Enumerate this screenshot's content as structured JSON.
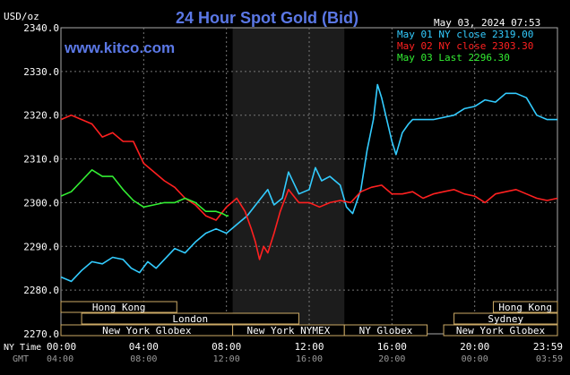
{
  "chart_data": {
    "type": "line",
    "title": "24 Hour Spot Gold (Bid)",
    "brand": "www.kitco.com",
    "timestamp": "May 03, 2024 07:53",
    "ylabel": "USD/oz",
    "ylim": [
      2270,
      2340
    ],
    "y_ticks": [
      "2340.0",
      "2330.0",
      "2320.0",
      "2310.0",
      "2300.0",
      "2290.0",
      "2280.0",
      "2270.0"
    ],
    "y_tick_values": [
      2340,
      2330,
      2320,
      2310,
      2300,
      2290,
      2280,
      2270
    ],
    "xlim": [
      0,
      24
    ],
    "x_axis_label_ny": "NY Time",
    "x_axis_label_gmt": "GMT",
    "x_ticks_ny": [
      "00:00",
      "04:00",
      "08:00",
      "12:00",
      "16:00",
      "20:00",
      "23:59"
    ],
    "x_ticks_gmt": [
      "04:00",
      "08:00",
      "12:00",
      "16:00",
      "20:00",
      "00:00",
      "03:59"
    ],
    "x_tick_hours": [
      0,
      4,
      8,
      12,
      16,
      20,
      24
    ],
    "shaded_hours": [
      8.3,
      13.7
    ],
    "grid": true,
    "legend_position": "top-right",
    "legend": [
      {
        "text": "May 01 NY close 2319.00",
        "color": "#33ccff"
      },
      {
        "text": "May 02 NY close 2303.30",
        "color": "#ff2020"
      },
      {
        "text": "May 03 Last 2296.30",
        "color": "#33ee33"
      }
    ],
    "sessions": [
      {
        "label": "Hong Kong",
        "start": 0,
        "end": 5.6,
        "row": 0
      },
      {
        "label": "London",
        "start": 1,
        "end": 11.5,
        "row": 1
      },
      {
        "label": "New York Globex",
        "start": 0,
        "end": 8.3,
        "row": 2
      },
      {
        "label": "New York NYMEX",
        "start": 8.3,
        "end": 13.7,
        "row": 2
      },
      {
        "label": "NY Globex",
        "start": 13.7,
        "end": 17.7,
        "row": 2
      },
      {
        "label": "Hong Kong",
        "start": 20.9,
        "end": 24,
        "row": 0
      },
      {
        "label": "Sydney",
        "start": 19,
        "end": 24,
        "row": 1
      },
      {
        "label": "New York Globex",
        "start": 18.5,
        "end": 24,
        "row": 2
      }
    ],
    "series": [
      {
        "name": "May 01 NY close 2319.00",
        "color": "#33ccff",
        "points": [
          [
            0,
            2283
          ],
          [
            0.5,
            2282
          ],
          [
            1,
            2284.5
          ],
          [
            1.5,
            2286.5
          ],
          [
            2,
            2286
          ],
          [
            2.5,
            2287.5
          ],
          [
            3,
            2287
          ],
          [
            3.4,
            2285
          ],
          [
            3.8,
            2284
          ],
          [
            4.2,
            2286.5
          ],
          [
            4.6,
            2285
          ],
          [
            5,
            2287
          ],
          [
            5.5,
            2289.5
          ],
          [
            6,
            2288.5
          ],
          [
            6.5,
            2291
          ],
          [
            7,
            2293
          ],
          [
            7.5,
            2294
          ],
          [
            8,
            2293
          ],
          [
            8.5,
            2295
          ],
          [
            9,
            2297
          ],
          [
            9.5,
            2300
          ],
          [
            10,
            2303
          ],
          [
            10.3,
            2299.5
          ],
          [
            10.7,
            2301
          ],
          [
            11,
            2307
          ],
          [
            11.5,
            2302
          ],
          [
            12,
            2303
          ],
          [
            12.3,
            2308
          ],
          [
            12.6,
            2305
          ],
          [
            13,
            2306
          ],
          [
            13.5,
            2304
          ],
          [
            13.8,
            2299
          ],
          [
            14.1,
            2297.5
          ],
          [
            14.5,
            2303
          ],
          [
            14.8,
            2312
          ],
          [
            15.1,
            2319
          ],
          [
            15.3,
            2327
          ],
          [
            15.5,
            2324
          ],
          [
            15.7,
            2320
          ],
          [
            16,
            2314
          ],
          [
            16.2,
            2311
          ],
          [
            16.5,
            2316
          ],
          [
            16.8,
            2318
          ],
          [
            17,
            2319
          ],
          [
            18,
            2319
          ],
          [
            19,
            2320
          ],
          [
            19.5,
            2321.5
          ],
          [
            20,
            2322
          ],
          [
            20.5,
            2323.5
          ],
          [
            21,
            2323
          ],
          [
            21.5,
            2325
          ],
          [
            22,
            2325
          ],
          [
            22.5,
            2324
          ],
          [
            23,
            2320
          ],
          [
            23.5,
            2319
          ],
          [
            24,
            2319
          ]
        ]
      },
      {
        "name": "May 02 NY close 2303.30",
        "color": "#ff2020",
        "points": [
          [
            0,
            2319
          ],
          [
            0.5,
            2320
          ],
          [
            1,
            2319
          ],
          [
            1.5,
            2318
          ],
          [
            2,
            2315
          ],
          [
            2.5,
            2316
          ],
          [
            3,
            2314
          ],
          [
            3.5,
            2314
          ],
          [
            4,
            2309
          ],
          [
            4.5,
            2307
          ],
          [
            5,
            2305
          ],
          [
            5.5,
            2303.5
          ],
          [
            6,
            2301
          ],
          [
            6.5,
            2299.5
          ],
          [
            7,
            2297
          ],
          [
            7.5,
            2296
          ],
          [
            8,
            2299
          ],
          [
            8.5,
            2301
          ],
          [
            8.9,
            2298
          ],
          [
            9.2,
            2294
          ],
          [
            9.4,
            2291
          ],
          [
            9.6,
            2287
          ],
          [
            9.8,
            2290
          ],
          [
            10,
            2288.5
          ],
          [
            10.3,
            2293
          ],
          [
            10.6,
            2298
          ],
          [
            11,
            2303
          ],
          [
            11.5,
            2300
          ],
          [
            12,
            2300
          ],
          [
            12.5,
            2299
          ],
          [
            13,
            2300
          ],
          [
            13.5,
            2300.5
          ],
          [
            14,
            2300
          ],
          [
            14.5,
            2302.5
          ],
          [
            15,
            2303.5
          ],
          [
            15.5,
            2304
          ],
          [
            16,
            2302
          ],
          [
            16.5,
            2302
          ],
          [
            17,
            2302.5
          ],
          [
            17.5,
            2301
          ],
          [
            18,
            2302
          ],
          [
            18.5,
            2302.5
          ],
          [
            19,
            2303
          ],
          [
            19.5,
            2302
          ],
          [
            20,
            2301.5
          ],
          [
            20.5,
            2300
          ],
          [
            21,
            2302
          ],
          [
            21.5,
            2302.5
          ],
          [
            22,
            2303
          ],
          [
            22.5,
            2302
          ],
          [
            23,
            2301
          ],
          [
            23.5,
            2300.5
          ],
          [
            24,
            2301
          ]
        ]
      },
      {
        "name": "May 03 Last 2296.30",
        "color": "#33ee33",
        "points": [
          [
            0,
            2301.5
          ],
          [
            0.5,
            2302.5
          ],
          [
            1,
            2305
          ],
          [
            1.5,
            2307.5
          ],
          [
            2,
            2306
          ],
          [
            2.5,
            2306
          ],
          [
            3,
            2303
          ],
          [
            3.5,
            2300.5
          ],
          [
            4,
            2299
          ],
          [
            4.5,
            2299.5
          ],
          [
            5,
            2300
          ],
          [
            5.5,
            2300
          ],
          [
            6,
            2301
          ],
          [
            6.5,
            2300
          ],
          [
            7,
            2298
          ],
          [
            7.5,
            2298
          ],
          [
            7.8,
            2297.5
          ],
          [
            8,
            2297
          ],
          [
            8.1,
            2297
          ]
        ]
      }
    ]
  }
}
